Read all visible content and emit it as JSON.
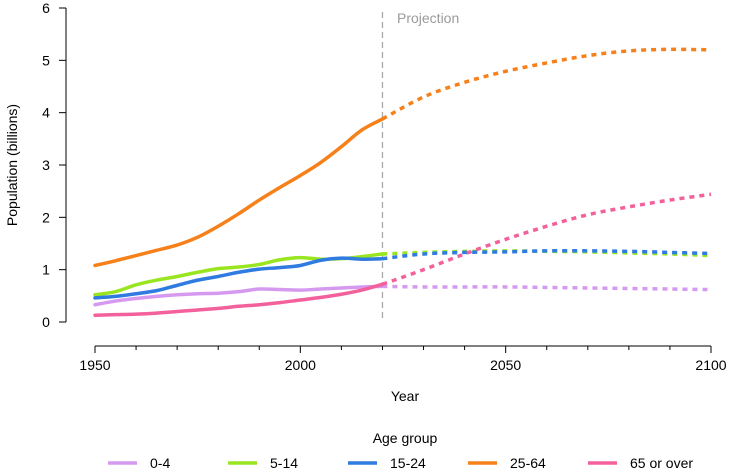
{
  "chart_data": {
    "type": "line",
    "xlabel": "Year",
    "ylabel": "Population (billions)",
    "xlim": [
      1950,
      2100
    ],
    "ylim": [
      0,
      6
    ],
    "xticks": [
      "1950",
      "2000",
      "2050",
      "2100"
    ],
    "yticks": [
      "0",
      "1",
      "2",
      "3",
      "4",
      "5",
      "6"
    ],
    "grid": false,
    "projection_start": 2020,
    "annotation": "Projection",
    "legend": {
      "title": "Age group",
      "position": "bottom"
    },
    "series": [
      {
        "name": "0-4",
        "color": "#d59af0",
        "historical": {
          "x": [
            1950,
            1955,
            1960,
            1965,
            1970,
            1975,
            1980,
            1985,
            1990,
            1995,
            2000,
            2005,
            2010,
            2015,
            2020
          ],
          "y": [
            0.33,
            0.4,
            0.45,
            0.49,
            0.52,
            0.54,
            0.55,
            0.58,
            0.63,
            0.62,
            0.61,
            0.63,
            0.65,
            0.67,
            0.68
          ]
        },
        "projection": {
          "x": [
            2020,
            2030,
            2040,
            2050,
            2060,
            2070,
            2080,
            2090,
            2100
          ],
          "y": [
            0.68,
            0.67,
            0.67,
            0.67,
            0.66,
            0.65,
            0.64,
            0.63,
            0.62
          ]
        }
      },
      {
        "name": "5-14",
        "color": "#99e51f",
        "historical": {
          "x": [
            1950,
            1955,
            1960,
            1965,
            1970,
            1975,
            1980,
            1985,
            1990,
            1995,
            2000,
            2005,
            2010,
            2015,
            2020
          ],
          "y": [
            0.52,
            0.58,
            0.71,
            0.8,
            0.87,
            0.95,
            1.02,
            1.05,
            1.1,
            1.19,
            1.23,
            1.2,
            1.21,
            1.25,
            1.3
          ]
        },
        "projection": {
          "x": [
            2020,
            2030,
            2040,
            2050,
            2060,
            2070,
            2080,
            2090,
            2100
          ],
          "y": [
            1.3,
            1.33,
            1.35,
            1.36,
            1.35,
            1.34,
            1.32,
            1.3,
            1.27
          ]
        }
      },
      {
        "name": "15-24",
        "color": "#2f7be0",
        "historical": {
          "x": [
            1950,
            1955,
            1960,
            1965,
            1970,
            1975,
            1980,
            1985,
            1990,
            1995,
            2000,
            2005,
            2010,
            2015,
            2020
          ],
          "y": [
            0.46,
            0.49,
            0.54,
            0.6,
            0.7,
            0.8,
            0.87,
            0.95,
            1.01,
            1.04,
            1.08,
            1.18,
            1.22,
            1.2,
            1.21
          ]
        },
        "projection": {
          "x": [
            2020,
            2030,
            2040,
            2050,
            2060,
            2070,
            2080,
            2090,
            2100
          ],
          "y": [
            1.21,
            1.3,
            1.33,
            1.34,
            1.36,
            1.36,
            1.35,
            1.33,
            1.31
          ]
        }
      },
      {
        "name": "25-64",
        "color": "#f68019",
        "historical": {
          "x": [
            1950,
            1955,
            1960,
            1965,
            1970,
            1975,
            1980,
            1985,
            1990,
            1995,
            2000,
            2005,
            2010,
            2015,
            2020
          ],
          "y": [
            1.08,
            1.17,
            1.27,
            1.37,
            1.47,
            1.62,
            1.83,
            2.07,
            2.33,
            2.57,
            2.8,
            3.05,
            3.35,
            3.67,
            3.88
          ]
        },
        "projection": {
          "x": [
            2020,
            2030,
            2040,
            2050,
            2060,
            2070,
            2080,
            2090,
            2100
          ],
          "y": [
            3.88,
            4.3,
            4.58,
            4.79,
            4.95,
            5.09,
            5.18,
            5.21,
            5.2
          ]
        }
      },
      {
        "name": "65 or over",
        "color": "#f2619c",
        "historical": {
          "x": [
            1950,
            1955,
            1960,
            1965,
            1970,
            1975,
            1980,
            1985,
            1990,
            1995,
            2000,
            2005,
            2010,
            2015,
            2020
          ],
          "y": [
            0.13,
            0.14,
            0.15,
            0.17,
            0.2,
            0.23,
            0.26,
            0.3,
            0.33,
            0.37,
            0.42,
            0.47,
            0.53,
            0.61,
            0.72
          ]
        },
        "projection": {
          "x": [
            2020,
            2030,
            2040,
            2050,
            2060,
            2070,
            2080,
            2090,
            2100
          ],
          "y": [
            0.72,
            1.0,
            1.3,
            1.58,
            1.83,
            2.05,
            2.2,
            2.33,
            2.44
          ]
        }
      }
    ]
  }
}
